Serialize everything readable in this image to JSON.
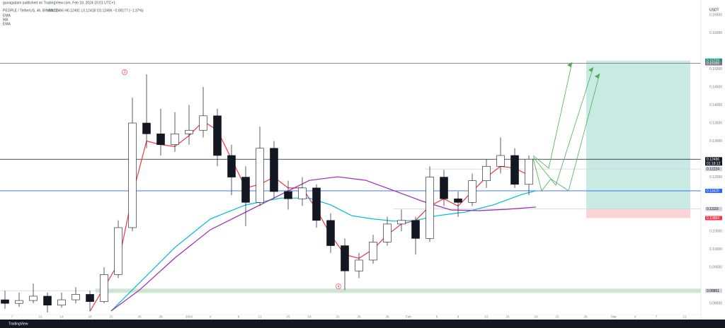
{
  "chart_data": {
    "type": "candlestick",
    "subtitle": "gunagadam published on TradingView.com, Feb 18, 2024 15:01 UTC+1",
    "title": "PEOPLE / TetherUS, 4h, BINANCE",
    "ohlc_text": "O0.12466 H0.12491 L0.12418 C0.12496 −0.00177 (−1.37%)",
    "currency": "USDT",
    "brand": "TradingView",
    "countdown": "01:18:12",
    "up_color": "#ffffff",
    "down_color": "#131722",
    "xlim": [
      -26.7,
      72.3
    ],
    "ylim": [
      0.0819,
      0.1691
    ],
    "xticks": [
      {
        "value": -25,
        "label": "7"
      },
      {
        "value": -21,
        "label": "11"
      },
      {
        "value": -18,
        "label": "14"
      },
      {
        "value": -14,
        "label": "18"
      },
      {
        "value": -11,
        "label": "21"
      },
      {
        "value": -7,
        "label": "25"
      },
      {
        "value": -4,
        "label": "28"
      },
      {
        "value": 0,
        "label": "2024"
      },
      {
        "value": 3,
        "label": "4"
      },
      {
        "value": 7,
        "label": "8"
      },
      {
        "value": 10,
        "label": "11"
      },
      {
        "value": 14,
        "label": "15"
      },
      {
        "value": 17,
        "label": "18"
      },
      {
        "value": 21,
        "label": "22"
      },
      {
        "value": 24,
        "label": "25"
      },
      {
        "value": 28,
        "label": "29"
      },
      {
        "value": 31,
        "label": "Feb"
      },
      {
        "value": 35,
        "label": "5"
      },
      {
        "value": 38,
        "label": "8"
      },
      {
        "value": 42,
        "label": "12"
      },
      {
        "value": 45,
        "label": "15"
      },
      {
        "value": 49,
        "label": "19"
      },
      {
        "value": 52,
        "label": "22"
      },
      {
        "value": 56,
        "label": "26"
      },
      {
        "value": 60,
        "label": "Mar"
      },
      {
        "value": 63,
        "label": "4"
      },
      {
        "value": 66,
        "label": "7"
      },
      {
        "value": 70,
        "label": "11"
      }
    ],
    "yticks": [
      {
        "value": 0.165,
        "label": "0.16500"
      },
      {
        "value": 0.16,
        "label": "0.16000"
      },
      {
        "value": 0.15,
        "label": "0.15000"
      },
      {
        "value": 0.145,
        "label": "0.14500"
      },
      {
        "value": 0.14,
        "label": "0.14000"
      },
      {
        "value": 0.135,
        "label": "0.13500"
      },
      {
        "value": 0.13,
        "label": "0.13000"
      },
      {
        "value": 0.12,
        "label": "0.12000"
      },
      {
        "value": 0.105,
        "label": "0.10500"
      },
      {
        "value": 0.1,
        "label": "0.10000"
      },
      {
        "value": 0.095,
        "label": "0.09500"
      },
      {
        "value": 0.085,
        "label": "0.08500"
      }
    ],
    "grid": false,
    "x": [
      -26,
      -24,
      -22,
      -20,
      -18,
      -16,
      -14,
      -12,
      -10,
      -8,
      -6,
      -4,
      -2,
      0,
      2,
      4,
      6,
      8,
      10,
      12,
      14,
      16,
      18,
      20,
      22,
      24,
      26,
      28,
      30,
      32,
      34,
      36,
      38,
      40,
      42,
      44,
      46,
      48
    ],
    "open": [
      0.086,
      0.085,
      0.0858,
      0.087,
      0.0845,
      0.086,
      0.0875,
      0.0855,
      0.093,
      0.106,
      0.135,
      0.132,
      0.129,
      0.132,
      0.133,
      0.137,
      0.126,
      0.12,
      0.113,
      0.128,
      0.116,
      0.114,
      0.117,
      0.108,
      0.101,
      0.094,
      0.097,
      0.102,
      0.107,
      0.108,
      0.103,
      0.12,
      0.114,
      0.113,
      0.119,
      0.123,
      0.126,
      0.118
    ],
    "high": [
      0.0885,
      0.088,
      0.0905,
      0.088,
      0.088,
      0.0895,
      0.0885,
      0.095,
      0.108,
      0.142,
      0.1485,
      0.139,
      0.138,
      0.14,
      0.145,
      0.139,
      0.129,
      0.123,
      0.134,
      0.13,
      0.119,
      0.12,
      0.118,
      0.11,
      0.103,
      0.099,
      0.104,
      0.109,
      0.111,
      0.109,
      0.123,
      0.122,
      0.116,
      0.121,
      0.125,
      0.131,
      0.128,
      0.126
    ],
    "low": [
      0.0835,
      0.084,
      0.085,
      0.0825,
      0.0838,
      0.085,
      0.083,
      0.085,
      0.092,
      0.105,
      0.128,
      0.126,
      0.127,
      0.129,
      0.131,
      0.123,
      0.115,
      0.1064,
      0.112,
      0.114,
      0.111,
      0.112,
      0.106,
      0.099,
      0.0887,
      0.092,
      0.096,
      0.101,
      0.105,
      0.0985,
      0.102,
      0.112,
      0.109,
      0.112,
      0.117,
      0.121,
      0.117,
      0.115
    ],
    "close": [
      0.085,
      0.0858,
      0.087,
      0.0845,
      0.086,
      0.0875,
      0.0855,
      0.093,
      0.106,
      0.135,
      0.132,
      0.129,
      0.132,
      0.133,
      0.137,
      0.126,
      0.12,
      0.113,
      0.128,
      0.116,
      0.114,
      0.117,
      0.108,
      0.101,
      0.094,
      0.097,
      0.102,
      0.107,
      0.108,
      0.103,
      0.12,
      0.114,
      0.113,
      0.119,
      0.123,
      0.126,
      0.118,
      0.12496
    ],
    "series": [
      {
        "name": "EMA",
        "color": "#f23645",
        "x": [
          -14,
          -10,
          -8,
          -6,
          -4,
          -2,
          0,
          2,
          4,
          6,
          8,
          10,
          12,
          14,
          16,
          18,
          20,
          22,
          24,
          26,
          28,
          30,
          32,
          34,
          36,
          38,
          40,
          42,
          44,
          46,
          48
        ],
        "values": [
          0.0828,
          0.096,
          0.115,
          0.13,
          0.129,
          0.1285,
          0.1315,
          0.1355,
          0.133,
          0.125,
          0.117,
          0.118,
          0.12,
          0.117,
          0.117,
          0.111,
          0.104,
          0.0985,
          0.0975,
          0.1,
          0.104,
          0.107,
          0.108,
          0.112,
          0.114,
          0.112,
          0.116,
          0.12,
          0.123,
          0.1225,
          0.1205
        ]
      },
      {
        "name": "MA",
        "color": "#00bcd4",
        "x": [
          -11,
          -7,
          -2,
          3,
          8,
          13,
          17,
          20,
          23,
          26,
          29,
          32,
          35,
          39,
          43,
          47,
          49
        ],
        "values": [
          0.0829,
          0.0907,
          0.1005,
          0.1084,
          0.1123,
          0.1142,
          0.1142,
          0.1123,
          0.1093,
          0.1084,
          0.1078,
          0.108,
          0.1093,
          0.1103,
          0.1123,
          0.1152,
          0.1162
        ]
      },
      {
        "name": "EMA",
        "color": "#9c27b0",
        "x": [
          -11,
          -7,
          -2,
          3,
          8,
          13,
          17,
          21,
          25,
          29,
          33,
          37,
          41,
          45,
          49
        ],
        "values": [
          0.0829,
          0.0887,
          0.0976,
          0.1054,
          0.1103,
          0.1152,
          0.1191,
          0.1201,
          0.1191,
          0.1162,
          0.1133,
          0.1109,
          0.1107,
          0.1111,
          0.1117
        ]
      }
    ],
    "levels": [
      {
        "value": 0.15229,
        "label": "0.15229",
        "color": "#089981",
        "text_color": "#ffffff"
      },
      {
        "value": 0.15155,
        "label": "0.15155",
        "color": "#787b86",
        "text_color": "#ffffff",
        "from": -26.7
      },
      {
        "value": 0.12496,
        "label": "0.12496",
        "color": "#131722",
        "text_color": "#ffffff",
        "from": -26.7
      },
      {
        "value": 0.12224,
        "label": "0.12224",
        "color": "#d1d4dc",
        "text_color": "#131722",
        "from": 33.3
      },
      {
        "value": 0.1162,
        "label": "0.11620",
        "color": "#2962ff",
        "text_color": "#ffffff",
        "from": -26.7
      },
      {
        "value": 0.11116,
        "label": "0.11116",
        "color": "#d1d4dc",
        "text_color": "#131722",
        "from": 28.8
      },
      {
        "value": 0.10864,
        "label": "0.10864",
        "color": "#f23645",
        "text_color": "#ffffff"
      },
      {
        "value": 0.08851,
        "label": "0.08851",
        "color": "#d1d4dc",
        "text_color": "#131722",
        "from": -26.7
      }
    ],
    "position": {
      "start": 56.1,
      "end": 70.8,
      "target": 0.15229,
      "entry": 0.11116,
      "stop": 0.10864
    },
    "support_zone": {
      "from": -13.2,
      "low": 0.0879,
      "high": 0.0891
    },
    "annotations": [
      {
        "text": "3",
        "x": -9.1,
        "y": 0.1491
      },
      {
        "text": "4",
        "x": 21.1,
        "y": 0.0897
      }
    ]
  }
}
